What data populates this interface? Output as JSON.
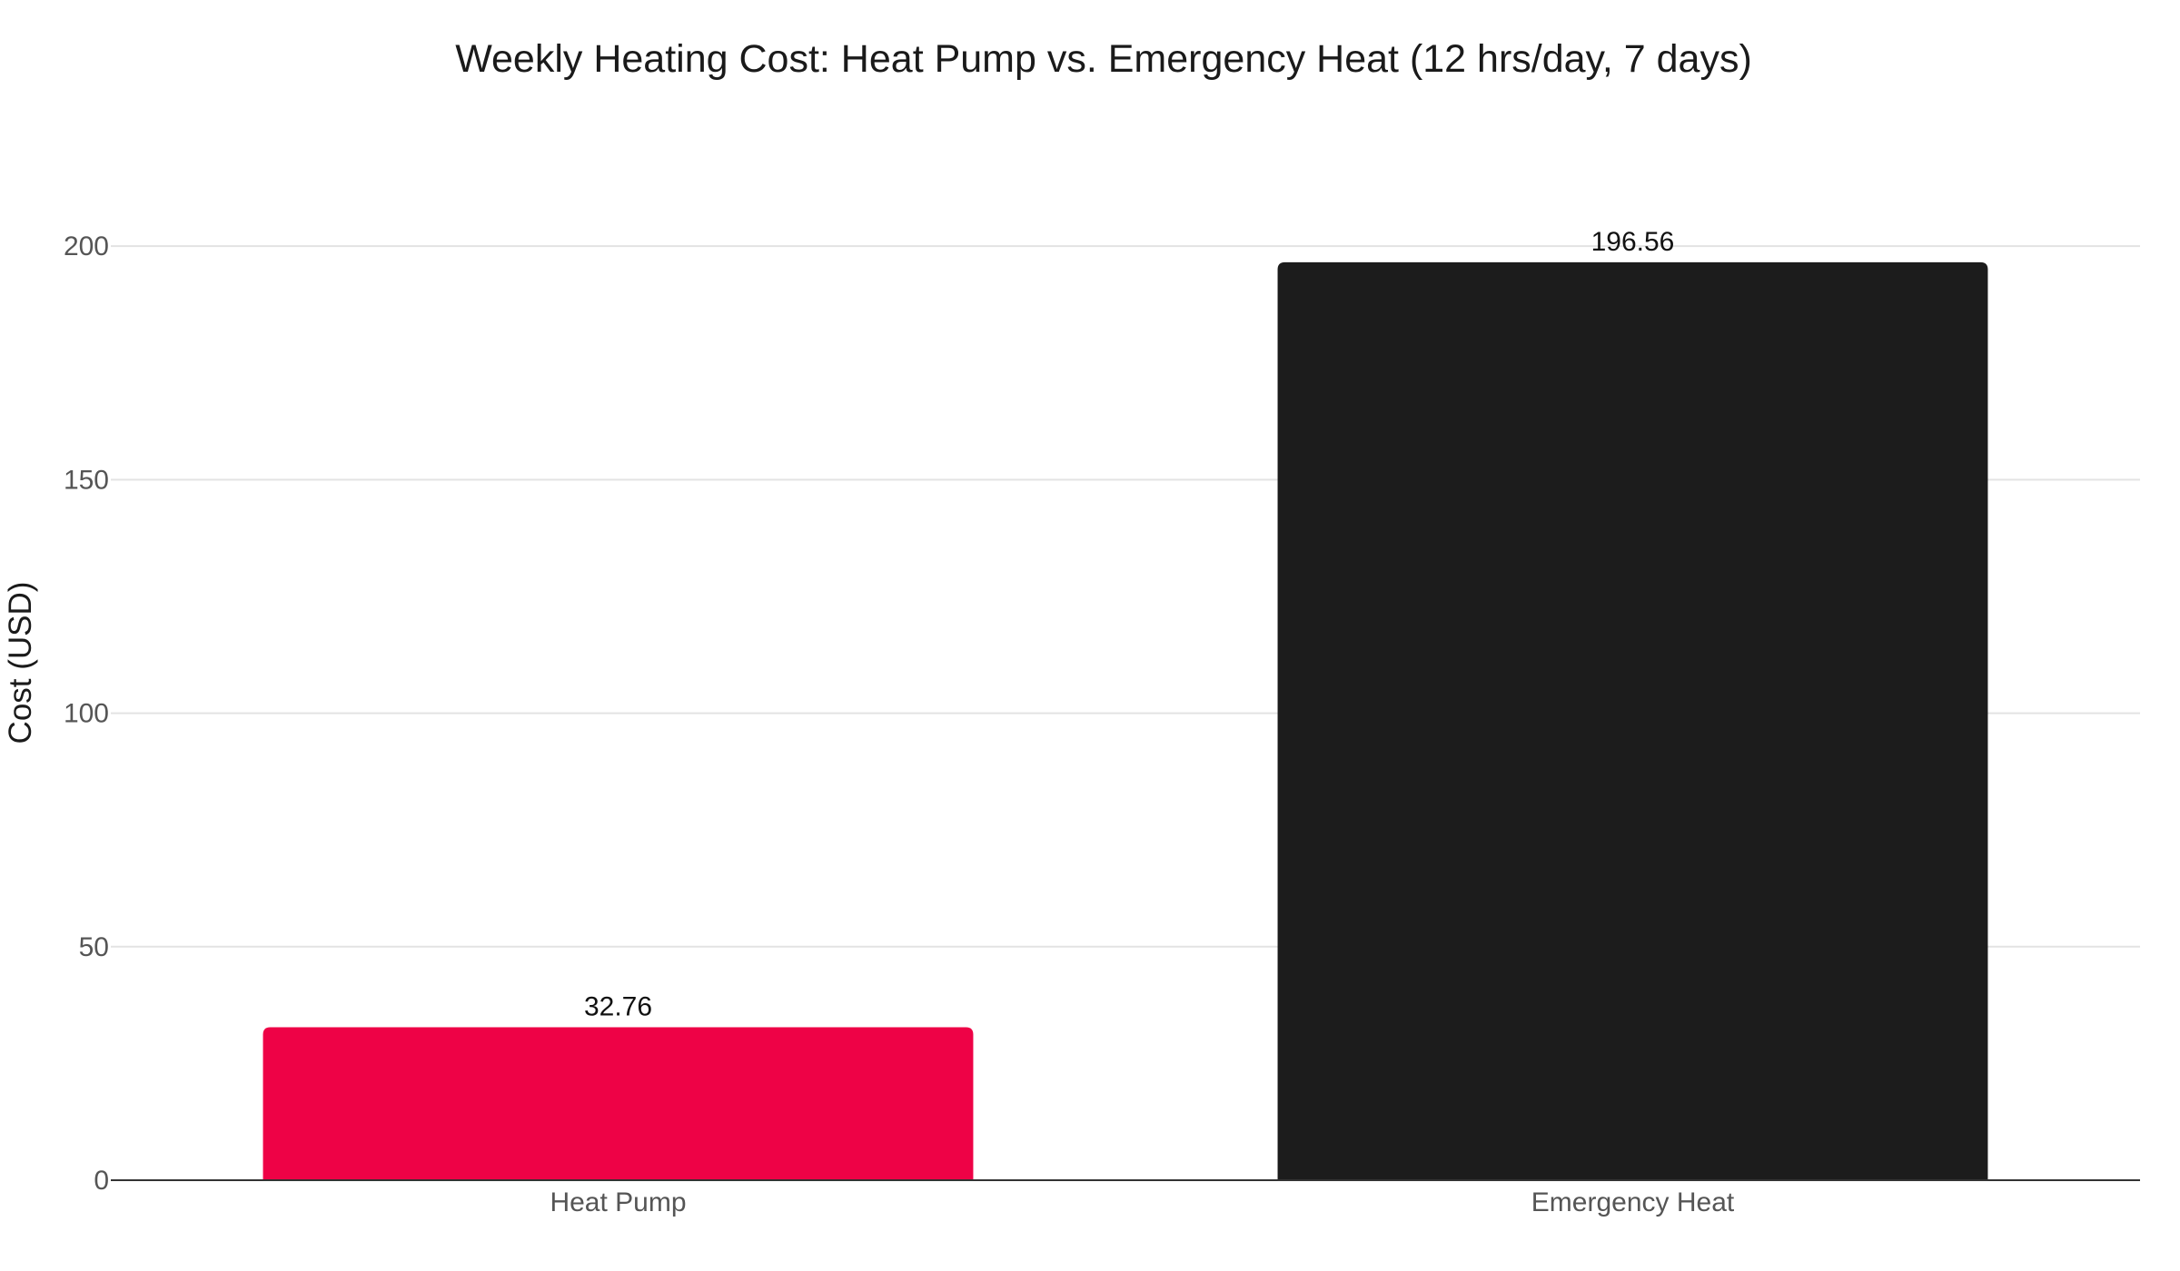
{
  "chart_data": {
    "type": "bar",
    "title": "Weekly Heating Cost: Heat Pump vs. Emergency Heat (12 hrs/day, 7 days)",
    "xlabel": "",
    "ylabel": "Cost (USD)",
    "categories": [
      "Heat Pump",
      "Emergency Heat"
    ],
    "values": [
      32.76,
      196.56
    ],
    "value_labels": [
      "32.76",
      "196.56"
    ],
    "colors": [
      "#ee0246",
      "#1c1c1c"
    ],
    "ylim": [
      0,
      208
    ],
    "yticks": [
      0,
      50,
      100,
      150,
      200
    ],
    "ytick_labels": [
      "0",
      "50",
      "100",
      "150",
      "200"
    ],
    "grid": true,
    "legend": "none"
  }
}
